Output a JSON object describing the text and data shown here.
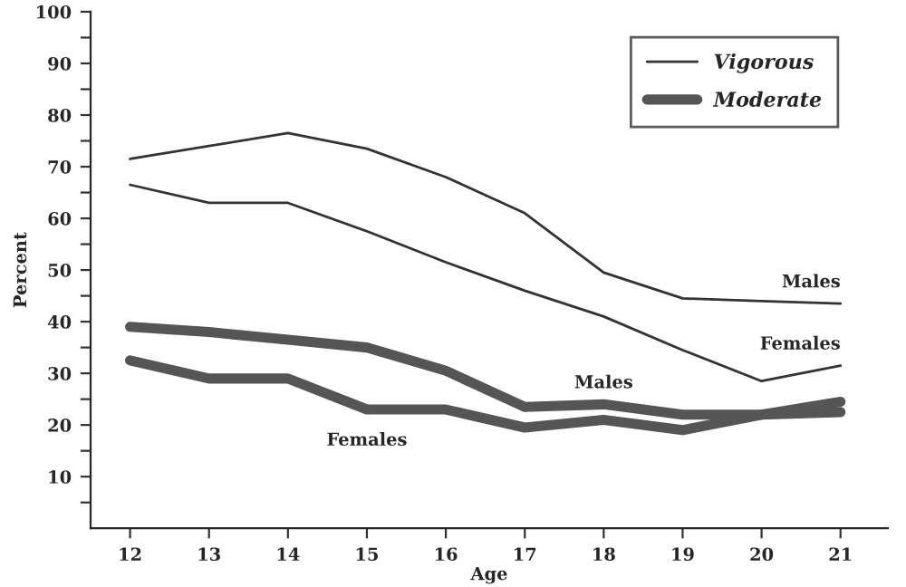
{
  "chart_data": {
    "type": "line",
    "xlabel": "Age",
    "ylabel": "Percent",
    "x": [
      12,
      13,
      14,
      15,
      16,
      17,
      18,
      19,
      20,
      21
    ],
    "series": [
      {
        "name": "Vigorous",
        "color": "#333333",
        "values": [
          71.5,
          74,
          76.5,
          73.5,
          68,
          61,
          49.5,
          44.5,
          44,
          43.5
        ]
      },
      {
        "color": "#333333",
        "values": [
          66.5,
          63,
          63,
          57.5,
          51.5,
          46,
          41,
          34.5,
          28.5,
          31.5
        ]
      },
      {
        "name": "Moderate",
        "color": "#555555",
        "values": [
          39,
          38,
          36.5,
          35,
          30.5,
          23.5,
          24,
          22,
          22,
          24.5
        ]
      },
      {
        "color": "#555555",
        "values": [
          32.5,
          29,
          29,
          23,
          23,
          19.5,
          21,
          19,
          22,
          22.5
        ]
      }
    ],
    "annotations": [
      {
        "text": "Males",
        "x": 21,
        "y": 43.5
      },
      {
        "text": "Females",
        "x": 21,
        "y": 31.5
      },
      {
        "text": "Males",
        "x": 18,
        "y": 24
      },
      {
        "text": "Females",
        "x": 15,
        "y": 23
      }
    ],
    "xlim": [
      11.5,
      21.6
    ],
    "xticks": [
      12,
      13,
      14,
      15,
      16,
      17,
      18,
      19,
      20,
      21
    ],
    "ylim": [
      0,
      100
    ],
    "yticks": [
      {
        "value": 5,
        "label": null
      },
      10,
      {
        "value": 15,
        "label": null
      },
      20,
      {
        "value": 25,
        "label": null
      },
      30,
      {
        "value": 35,
        "label": null
      },
      40,
      {
        "value": 45,
        "label": null
      },
      50,
      {
        "value": 55,
        "label": null
      },
      60,
      {
        "value": 65,
        "label": null
      },
      70,
      {
        "value": 75,
        "label": null
      },
      80,
      {
        "value": 85,
        "label": null
      },
      90,
      {
        "value": 95,
        "label": null
      },
      100
    ],
    "grid": false,
    "legend": "top right",
    "line_style": "solid",
    "marker": "none"
  }
}
